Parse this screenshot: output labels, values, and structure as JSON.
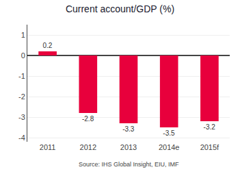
{
  "chart_data": {
    "type": "bar",
    "title": "Current account/GDP (%)",
    "categories": [
      "2011",
      "2012",
      "2013",
      "2014e",
      "2015f"
    ],
    "values": [
      0.2,
      -2.8,
      -3.3,
      -3.5,
      -3.2
    ],
    "color": "#e8003c",
    "ylim": [
      -4.2,
      1.5
    ],
    "yticks": [
      1,
      0,
      -1,
      -2,
      -3,
      -4
    ],
    "grid": true,
    "data_labels": true,
    "annotations": [
      "Source: IHS Global Insight, EIU, IMF"
    ]
  }
}
